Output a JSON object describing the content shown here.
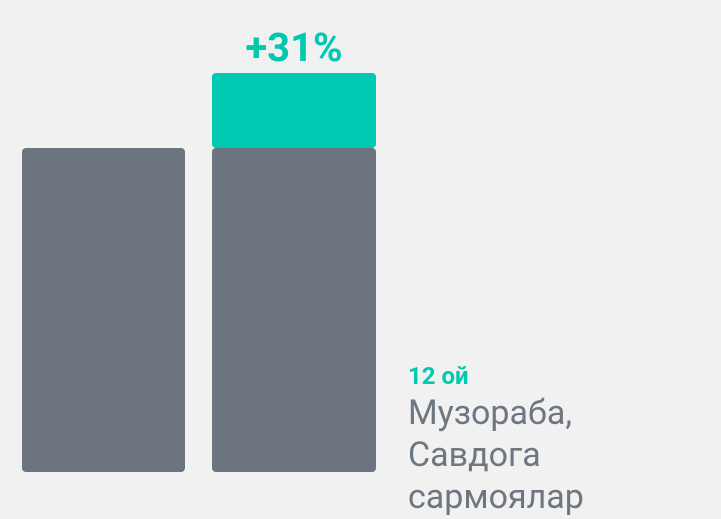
{
  "chart_data": {
    "type": "stacked-bar",
    "categories": [
      null,
      null
    ],
    "series": [
      {
        "color": "#6c757f",
        "values": [
          134,
          134
        ]
      },
      {
        "color": "#00c9b1",
        "values": [
          null,
          31
        ],
        "value_labels": [
          null,
          "+31%"
        ]
      }
    ],
    "ylim": [
      0,
      165
    ],
    "annotation": {
      "title": "12 ой",
      "lines": [
        "Музораба,",
        "Савдога",
        "сармоялар"
      ]
    }
  }
}
